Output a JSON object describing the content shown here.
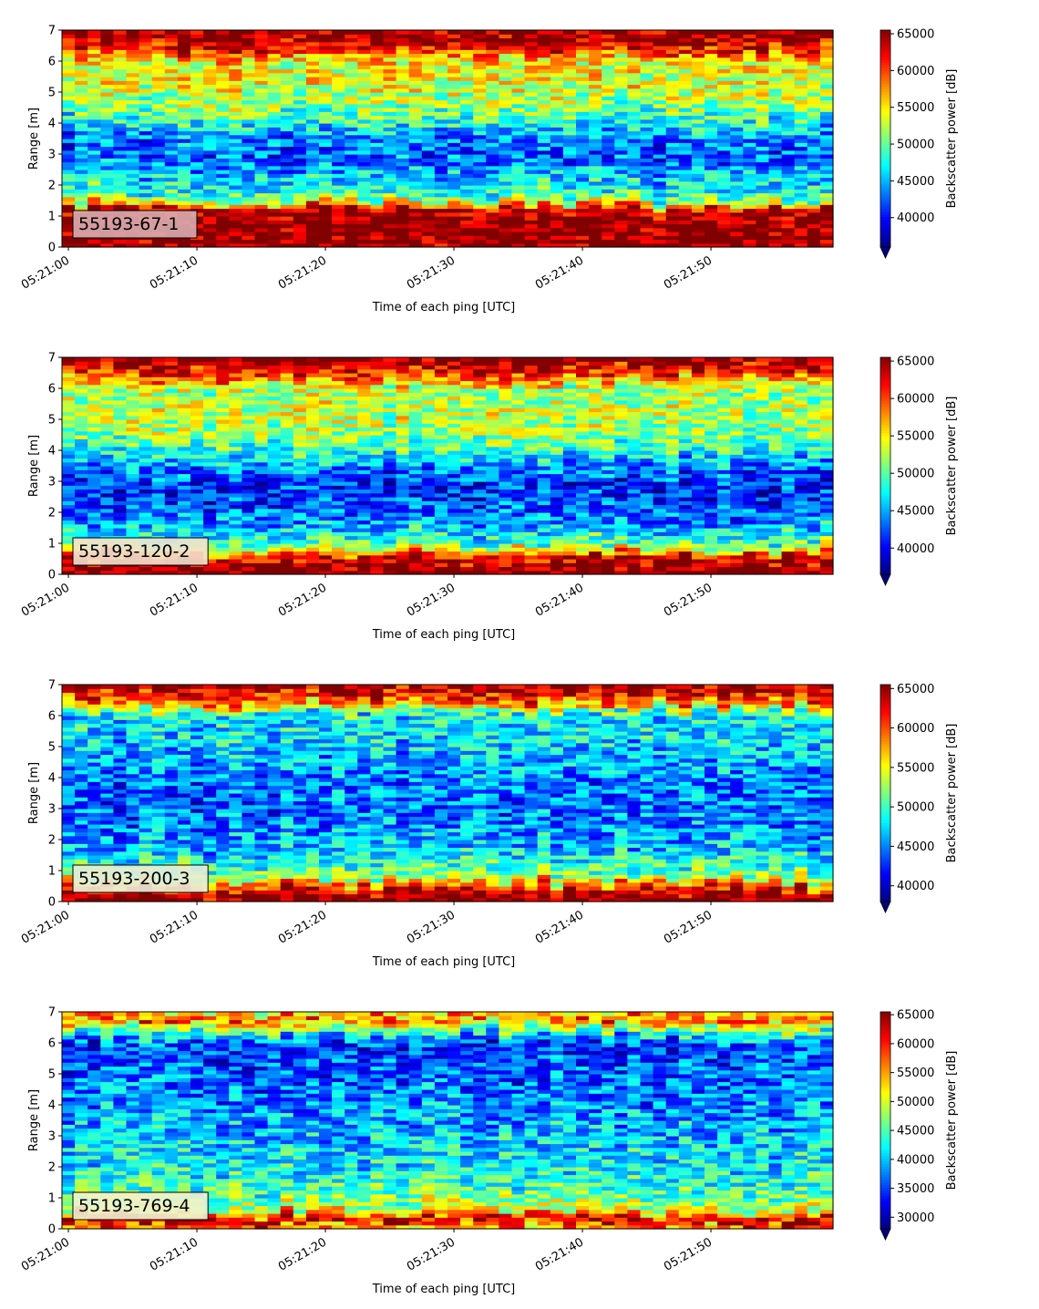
{
  "chart_data": [
    {
      "type": "heatmap",
      "title": "",
      "label_box": "55193-67-1",
      "label_box_color": "#d9adb0",
      "xlabel": "Time of each ping [UTC]",
      "ylabel": "Range [m]",
      "colorbar_label": "Backscatter power [dB]",
      "xlim": [
        "05:20:59.5",
        "05:21:59.5"
      ],
      "xticks": [
        "05:21:00",
        "05:21:10",
        "05:21:20",
        "05:21:30",
        "05:21:40",
        "05:21:50"
      ],
      "ylim": [
        0,
        7
      ],
      "yticks": [
        0,
        1,
        2,
        3,
        4,
        5,
        6,
        7
      ],
      "clim": [
        36000,
        65500
      ],
      "colorbar_ticks": [
        40000,
        45000,
        50000,
        55000,
        60000,
        65000
      ],
      "colorbar_ticklabels": [
        "40000",
        "45000",
        "50000",
        "55000",
        "60000",
        "65000"
      ],
      "colorbar_extend": "min",
      "colormap": "jet",
      "grid": false,
      "profile_levels": [
        {
          "range_m": 0.2,
          "power": 65500
        },
        {
          "range_m": 0.8,
          "power": 65500
        },
        {
          "range_m": 1.2,
          "power": 64000
        },
        {
          "range_m": 1.6,
          "power": 49000
        },
        {
          "range_m": 2.2,
          "power": 46000
        },
        {
          "range_m": 3.0,
          "power": 42000
        },
        {
          "range_m": 3.6,
          "power": 44000
        },
        {
          "range_m": 4.2,
          "power": 49000
        },
        {
          "range_m": 5.0,
          "power": 53000
        },
        {
          "range_m": 6.0,
          "power": 54000
        },
        {
          "range_m": 6.5,
          "power": 63000
        },
        {
          "range_m": 7.0,
          "power": 65500
        }
      ]
    },
    {
      "type": "heatmap",
      "title": "",
      "label_box": "55193-120-2",
      "label_box_color": "#f2e2cf",
      "xlabel": "Time of each ping [UTC]",
      "ylabel": "Range [m]",
      "colorbar_label": "Backscatter power [dB]",
      "xlim": [
        "05:20:59.5",
        "05:21:59.5"
      ],
      "xticks": [
        "05:21:00",
        "05:21:10",
        "05:21:20",
        "05:21:30",
        "05:21:40",
        "05:21:50"
      ],
      "ylim": [
        0,
        7
      ],
      "yticks": [
        0,
        1,
        2,
        3,
        4,
        5,
        6,
        7
      ],
      "clim": [
        36500,
        65500
      ],
      "colorbar_ticks": [
        40000,
        45000,
        50000,
        55000,
        60000,
        65000
      ],
      "colorbar_ticklabels": [
        "40000",
        "45000",
        "50000",
        "55000",
        "60000",
        "65000"
      ],
      "colorbar_extend": "min",
      "colormap": "jet",
      "grid": false,
      "profile_levels": [
        {
          "range_m": 0.2,
          "power": 65500
        },
        {
          "range_m": 0.6,
          "power": 62000
        },
        {
          "range_m": 1.0,
          "power": 50000
        },
        {
          "range_m": 1.6,
          "power": 45000
        },
        {
          "range_m": 2.4,
          "power": 42000
        },
        {
          "range_m": 3.0,
          "power": 41000
        },
        {
          "range_m": 3.6,
          "power": 45000
        },
        {
          "range_m": 4.4,
          "power": 51000
        },
        {
          "range_m": 5.2,
          "power": 53000
        },
        {
          "range_m": 6.0,
          "power": 52000
        },
        {
          "range_m": 6.6,
          "power": 62000
        },
        {
          "range_m": 7.0,
          "power": 65500
        }
      ]
    },
    {
      "type": "heatmap",
      "title": "",
      "label_box": "55193-200-3",
      "label_box_color": "#e8ecd8",
      "xlabel": "Time of each ping [UTC]",
      "ylabel": "Range [m]",
      "colorbar_label": "Backscatter power [dB]",
      "xlim": [
        "05:20:59.5",
        "05:21:59.5"
      ],
      "xticks": [
        "05:21:00",
        "05:21:10",
        "05:21:20",
        "05:21:30",
        "05:21:40",
        "05:21:50"
      ],
      "ylim": [
        0,
        7
      ],
      "yticks": [
        0,
        1,
        2,
        3,
        4,
        5,
        6,
        7
      ],
      "clim": [
        38000,
        65500
      ],
      "colorbar_ticks": [
        40000,
        45000,
        50000,
        55000,
        60000,
        65000
      ],
      "colorbar_ticklabels": [
        "40000",
        "45000",
        "50000",
        "55000",
        "60000",
        "65000"
      ],
      "colorbar_extend": "min",
      "colormap": "jet",
      "grid": false,
      "profile_levels": [
        {
          "range_m": 0.1,
          "power": 65500
        },
        {
          "range_m": 0.4,
          "power": 62000
        },
        {
          "range_m": 0.8,
          "power": 52000
        },
        {
          "range_m": 1.6,
          "power": 47000
        },
        {
          "range_m": 2.4,
          "power": 45000
        },
        {
          "range_m": 3.2,
          "power": 44000
        },
        {
          "range_m": 4.0,
          "power": 45000
        },
        {
          "range_m": 5.0,
          "power": 47000
        },
        {
          "range_m": 6.0,
          "power": 48000
        },
        {
          "range_m": 6.5,
          "power": 60000
        },
        {
          "range_m": 7.0,
          "power": 65500
        }
      ]
    },
    {
      "type": "heatmap",
      "title": "",
      "label_box": "55193-769-4",
      "label_box_color": "#eef2d0",
      "xlabel": "Time of each ping [UTC]",
      "ylabel": "Range [m]",
      "colorbar_label": "Backscatter power [dB]",
      "xlim": [
        "05:20:59.5",
        "05:21:59.5"
      ],
      "xticks": [
        "05:21:00",
        "05:21:10",
        "05:21:20",
        "05:21:30",
        "05:21:40",
        "05:21:50"
      ],
      "ylim": [
        0,
        7
      ],
      "yticks": [
        0,
        1,
        2,
        3,
        4,
        5,
        6,
        7
      ],
      "clim": [
        28000,
        65500
      ],
      "colorbar_ticks": [
        30000,
        35000,
        40000,
        45000,
        50000,
        55000,
        60000,
        65000
      ],
      "colorbar_ticklabels": [
        "30000",
        "35000",
        "40000",
        "45000",
        "50000",
        "55000",
        "60000",
        "65000"
      ],
      "colorbar_extend": "min",
      "colormap": "jet",
      "grid": false,
      "profile_levels": [
        {
          "range_m": 0.1,
          "power": 55000
        },
        {
          "range_m": 0.3,
          "power": 65500
        },
        {
          "range_m": 0.6,
          "power": 50000
        },
        {
          "range_m": 1.2,
          "power": 45000
        },
        {
          "range_m": 2.0,
          "power": 42000
        },
        {
          "range_m": 3.0,
          "power": 40000
        },
        {
          "range_m": 4.0,
          "power": 38000
        },
        {
          "range_m": 5.0,
          "power": 36000
        },
        {
          "range_m": 6.0,
          "power": 35000
        },
        {
          "range_m": 6.5,
          "power": 48000
        },
        {
          "range_m": 6.8,
          "power": 58000
        },
        {
          "range_m": 7.0,
          "power": 52000
        }
      ]
    }
  ]
}
